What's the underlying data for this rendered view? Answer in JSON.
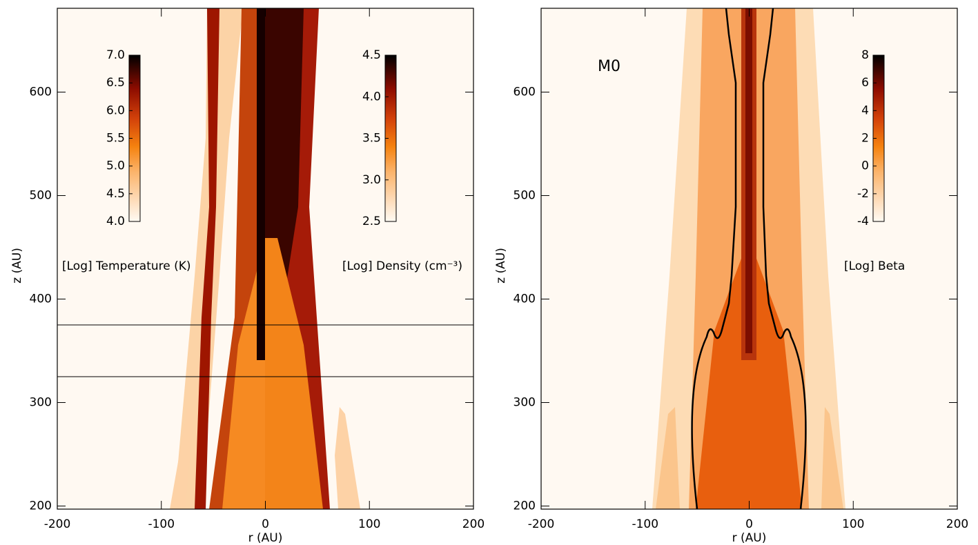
{
  "chart_data": [
    {
      "type": "heatmap",
      "xlabel": "r (AU)",
      "ylabel": "z (AU)",
      "xlim": [
        -200,
        200
      ],
      "ylim": [
        197,
        681
      ],
      "xticks": [
        -200,
        -100,
        0,
        100,
        200
      ],
      "yticks": [
        200,
        300,
        400,
        500,
        600
      ],
      "hlines": [
        375,
        325
      ],
      "colorbars": [
        {
          "label": "[Log] Temperature (K)",
          "lim": [
            4,
            7
          ],
          "ticks": [
            {
              "value": 4,
              "label": "4.0"
            },
            4.5,
            {
              "value": 5,
              "label": "5.0"
            },
            5.5,
            {
              "value": 6,
              "label": "6.0"
            },
            6.5,
            {
              "value": 7,
              "label": "7.0"
            }
          ]
        },
        {
          "label": "[Log] Density (cm⁻³)",
          "lim": [
            2.5,
            4.5
          ],
          "ticks": [
            2.5,
            {
              "value": 3,
              "label": "3.0"
            },
            3.5,
            {
              "value": 4,
              "label": "4.0"
            },
            4.5
          ]
        }
      ]
    },
    {
      "type": "heatmap",
      "xlabel": "r (AU)",
      "ylabel": "z (AU)",
      "annotation": "M0",
      "xlim": [
        -200,
        200
      ],
      "ylim": [
        197,
        681
      ],
      "xticks": [
        -200,
        -100,
        0,
        100,
        200
      ],
      "yticks": [
        200,
        300,
        400,
        500,
        600
      ],
      "colorbars": [
        {
          "label": "[Log] Beta",
          "lim": [
            -4,
            8
          ],
          "ticks": [
            -4,
            -2,
            0,
            2,
            4,
            6,
            8
          ]
        }
      ]
    }
  ]
}
